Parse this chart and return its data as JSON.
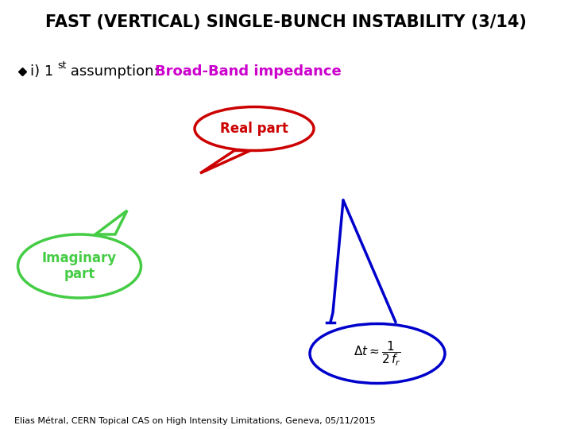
{
  "title": "FAST (VERTICAL) SINGLE-BUNCH INSTABILITY (3/14)",
  "title_fontsize": 15,
  "title_fontweight": "bold",
  "bullet_fontsize": 13,
  "bullet_highlight_color": "#cc00cc",
  "real_part_label": "Real part",
  "real_part_color": "#cc0000",
  "real_part_fontsize": 12,
  "imag_part_label": "Imaginary\npart",
  "imag_part_color": "#44cc44",
  "imag_part_fontsize": 12,
  "blue_color": "#0000cc",
  "footer_text": "Elias Métral, CERN Topical CAS on High Intensity Limitations, Geneva, 05/11/2015",
  "footer_fontsize": 8,
  "background_color": "#ffffff"
}
